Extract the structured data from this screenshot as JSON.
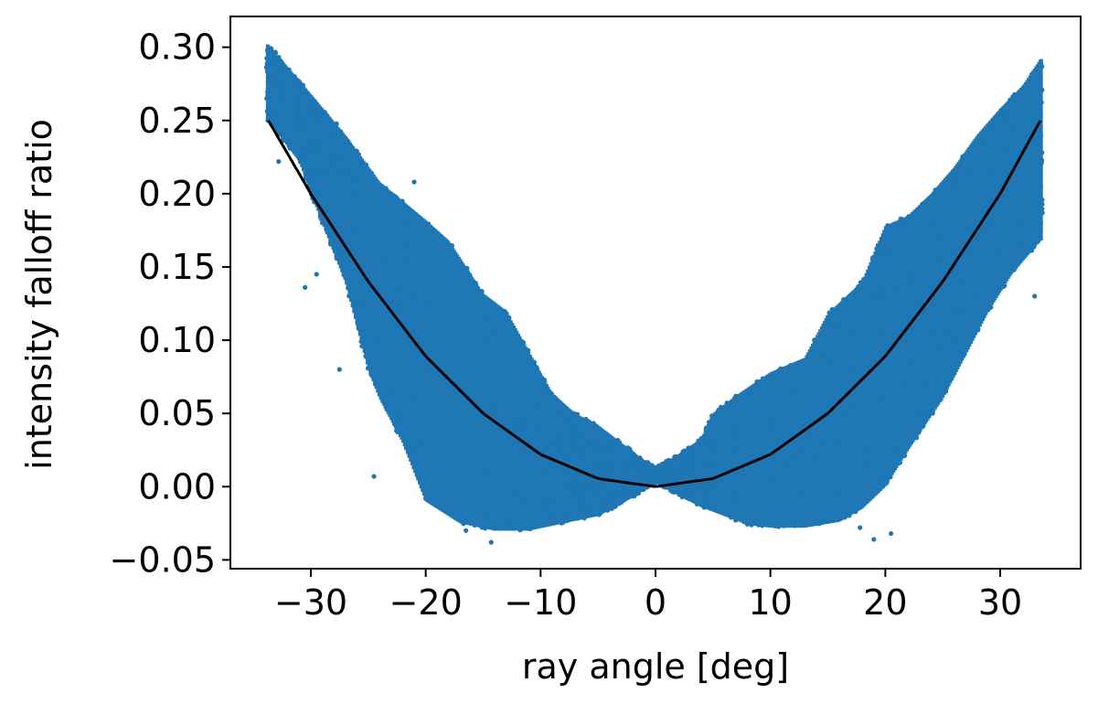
{
  "chart_data": {
    "type": "scatter",
    "xlabel": "ray angle [deg]",
    "ylabel": "intensity falloff ratio",
    "xlim": [
      -37,
      37
    ],
    "ylim": [
      -0.056,
      0.321
    ],
    "x_ticks": [
      -30,
      -20,
      -10,
      0,
      10,
      20,
      30
    ],
    "y_ticks": [
      -0.05,
      0.0,
      0.05,
      0.1,
      0.15,
      0.2,
      0.25,
      0.3
    ],
    "x_tick_labels": [
      "−30",
      "−20",
      "−10",
      "0",
      "10",
      "20",
      "30"
    ],
    "y_tick_labels": [
      "−0.05",
      "0.00",
      "0.05",
      "0.10",
      "0.15",
      "0.20",
      "0.25",
      "0.30"
    ],
    "grid": false,
    "colors": {
      "scatter": "#1f77b4",
      "fit_line": "#000000"
    },
    "series": [
      {
        "kind": "scatter-band",
        "x_range": [
          -33.8,
          33.6
        ],
        "upper_envelope": [
          {
            "x": -33.7,
            "y": 0.302
          },
          {
            "x": -30,
            "y": 0.268
          },
          {
            "x": -27,
            "y": 0.24
          },
          {
            "x": -24,
            "y": 0.208
          },
          {
            "x": -20,
            "y": 0.182
          },
          {
            "x": -18,
            "y": 0.168
          },
          {
            "x": -15,
            "y": 0.132
          },
          {
            "x": -13,
            "y": 0.12
          },
          {
            "x": -11,
            "y": 0.092
          },
          {
            "x": -9,
            "y": 0.064
          },
          {
            "x": -7,
            "y": 0.05
          },
          {
            "x": -5,
            "y": 0.042
          },
          {
            "x": -3,
            "y": 0.03
          },
          {
            "x": -1,
            "y": 0.018
          },
          {
            "x": 0,
            "y": 0.013
          },
          {
            "x": 2,
            "y": 0.022
          },
          {
            "x": 4,
            "y": 0.033
          },
          {
            "x": 5,
            "y": 0.05
          },
          {
            "x": 7,
            "y": 0.062
          },
          {
            "x": 10,
            "y": 0.078
          },
          {
            "x": 13,
            "y": 0.088
          },
          {
            "x": 15,
            "y": 0.118
          },
          {
            "x": 18,
            "y": 0.14
          },
          {
            "x": 20,
            "y": 0.178
          },
          {
            "x": 22,
            "y": 0.185
          },
          {
            "x": 24,
            "y": 0.2
          },
          {
            "x": 26,
            "y": 0.218
          },
          {
            "x": 28,
            "y": 0.24
          },
          {
            "x": 30,
            "y": 0.258
          },
          {
            "x": 32,
            "y": 0.274
          },
          {
            "x": 33.5,
            "y": 0.292
          }
        ],
        "lower_envelope": [
          {
            "x": -33.7,
            "y": 0.25
          },
          {
            "x": -31,
            "y": 0.222
          },
          {
            "x": -29,
            "y": 0.18
          },
          {
            "x": -27,
            "y": 0.14
          },
          {
            "x": -26,
            "y": 0.11
          },
          {
            "x": -25,
            "y": 0.08
          },
          {
            "x": -24,
            "y": 0.06
          },
          {
            "x": -22,
            "y": 0.03
          },
          {
            "x": -21,
            "y": 0.01
          },
          {
            "x": -20,
            "y": -0.01
          },
          {
            "x": -17,
            "y": -0.025
          },
          {
            "x": -14,
            "y": -0.03
          },
          {
            "x": -11,
            "y": -0.03
          },
          {
            "x": -8,
            "y": -0.025
          },
          {
            "x": -5,
            "y": -0.02
          },
          {
            "x": -3,
            "y": -0.012
          },
          {
            "x": -1,
            "y": -0.002
          },
          {
            "x": 0,
            "y": 0.003
          },
          {
            "x": 2,
            "y": -0.006
          },
          {
            "x": 4,
            "y": -0.014
          },
          {
            "x": 6,
            "y": -0.02
          },
          {
            "x": 8,
            "y": -0.026
          },
          {
            "x": 10,
            "y": -0.028
          },
          {
            "x": 13,
            "y": -0.028
          },
          {
            "x": 16,
            "y": -0.024
          },
          {
            "x": 18,
            "y": -0.015
          },
          {
            "x": 20,
            "y": 0.0
          },
          {
            "x": 22,
            "y": 0.025
          },
          {
            "x": 25,
            "y": 0.06
          },
          {
            "x": 27,
            "y": 0.09
          },
          {
            "x": 29,
            "y": 0.12
          },
          {
            "x": 31,
            "y": 0.145
          },
          {
            "x": 33.5,
            "y": 0.168
          }
        ]
      },
      {
        "kind": "fit-line",
        "points": [
          {
            "x": -33.7,
            "y": 0.25
          },
          {
            "x": -30,
            "y": 0.2
          },
          {
            "x": -25,
            "y": 0.14
          },
          {
            "x": -20,
            "y": 0.089
          },
          {
            "x": -15,
            "y": 0.05
          },
          {
            "x": -10,
            "y": 0.022
          },
          {
            "x": -5,
            "y": 0.0055
          },
          {
            "x": 0,
            "y": 0.0
          },
          {
            "x": 5,
            "y": 0.0055
          },
          {
            "x": 10,
            "y": 0.022
          },
          {
            "x": 15,
            "y": 0.05
          },
          {
            "x": 20,
            "y": 0.089
          },
          {
            "x": 25,
            "y": 0.14
          },
          {
            "x": 30,
            "y": 0.2
          },
          {
            "x": 33.5,
            "y": 0.25
          }
        ]
      }
    ]
  }
}
